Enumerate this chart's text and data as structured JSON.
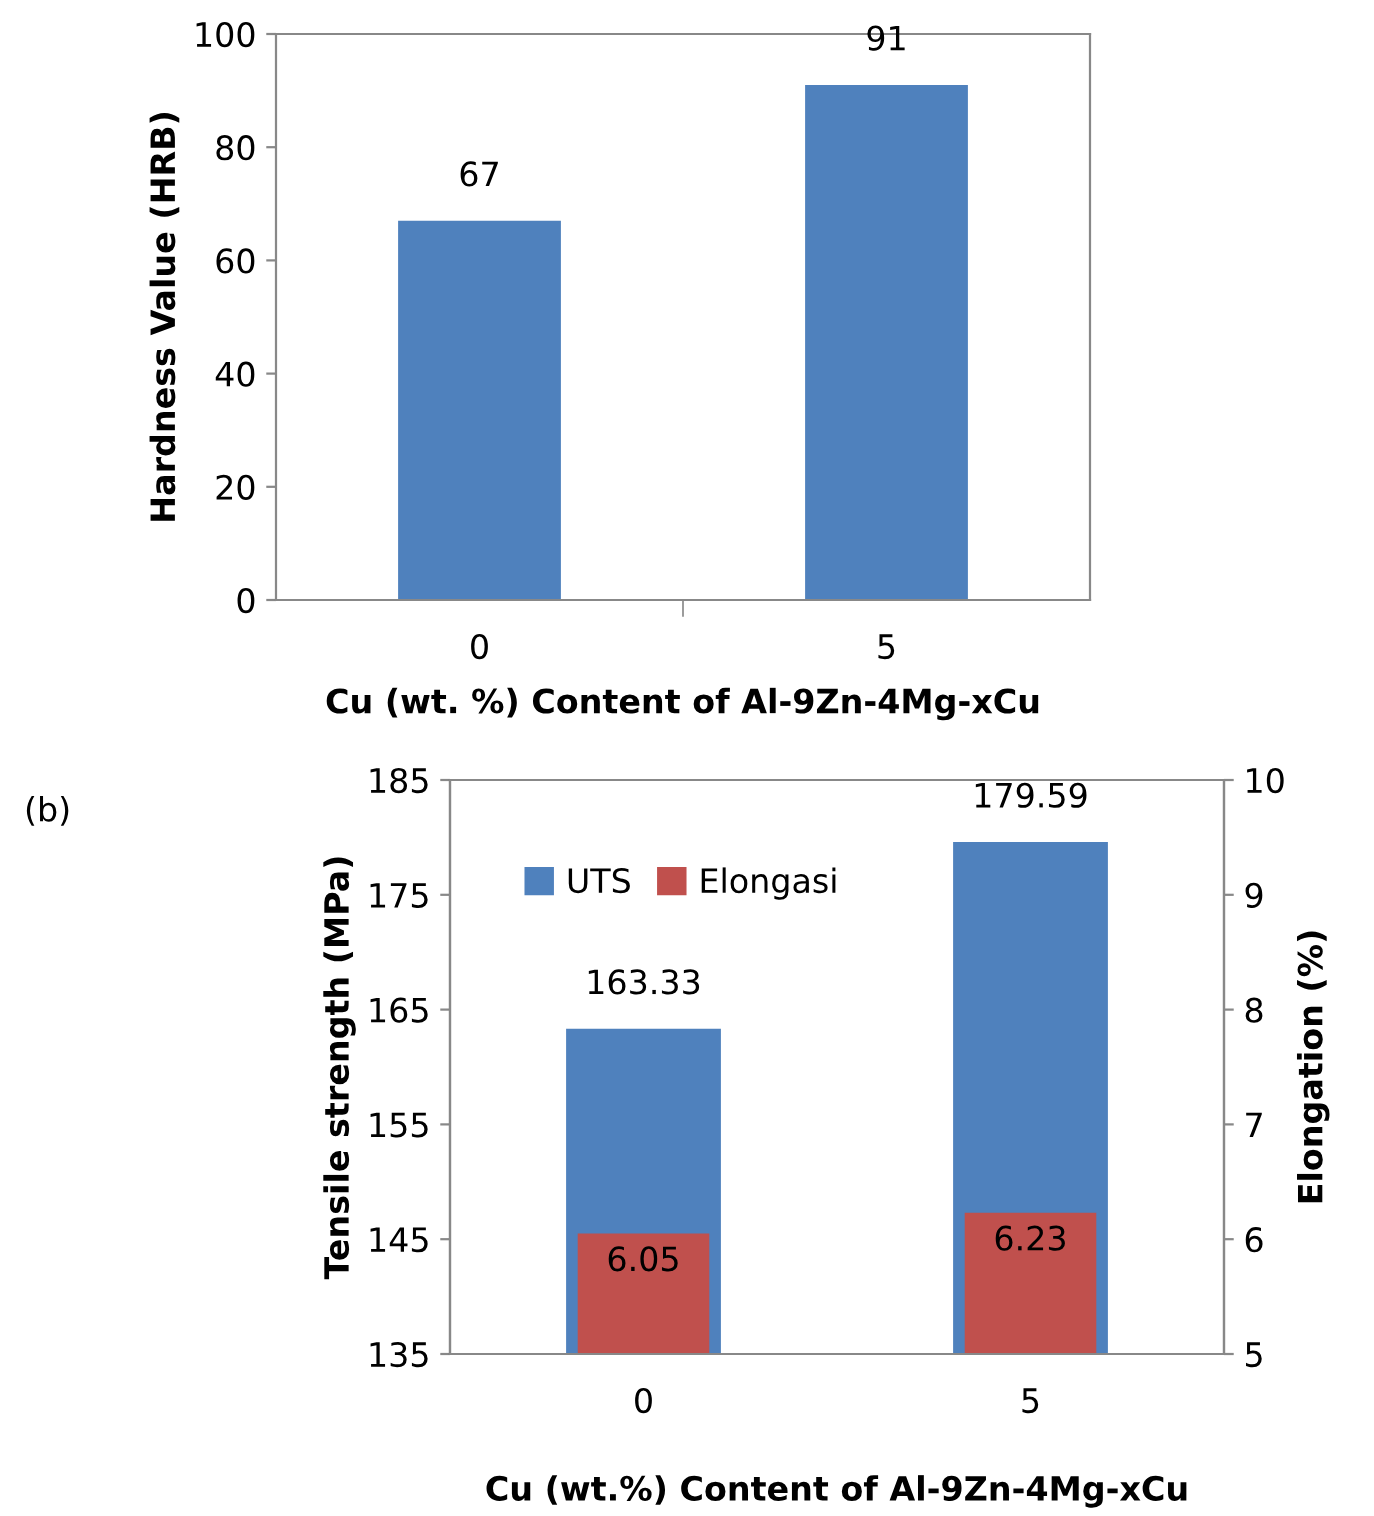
{
  "chart_data": [
    {
      "type": "bar",
      "categories": [
        "0",
        "5"
      ],
      "values": [
        67,
        91
      ],
      "color": "#4f81bd",
      "ylim": [
        0,
        100
      ],
      "yticks": [
        0,
        20,
        40,
        60,
        80,
        100
      ],
      "ylabel": "Hardness Value (HRB)",
      "xlabel": "Cu (wt. %) Content of Al-9Zn-4Mg-xCu",
      "data_labels": true,
      "grid": false
    },
    {
      "type": "bar",
      "categories": [
        "0",
        "5"
      ],
      "series": [
        {
          "name": "UTS",
          "color": "#4f81bd",
          "values": [
            163.33,
            179.59
          ]
        },
        {
          "name": "Elongasi",
          "color": "#c0504d",
          "values": [
            6.05,
            6.23
          ],
          "axis": "y2"
        }
      ],
      "ylim": [
        135,
        185
      ],
      "yticks": [
        135,
        145,
        155,
        165,
        175,
        185
      ],
      "y2lim": [
        5,
        10
      ],
      "y2ticks": [
        5,
        6,
        7,
        8,
        9,
        10
      ],
      "ylabel": "Tensile strength (MPa)",
      "y2label": "Elongation (%)",
      "xlabel": "Cu (wt.%) Content of Al-9Zn-4Mg-xCu",
      "data_labels": true,
      "legend": "top",
      "grid": false,
      "annotations": [
        "(b)"
      ]
    }
  ]
}
